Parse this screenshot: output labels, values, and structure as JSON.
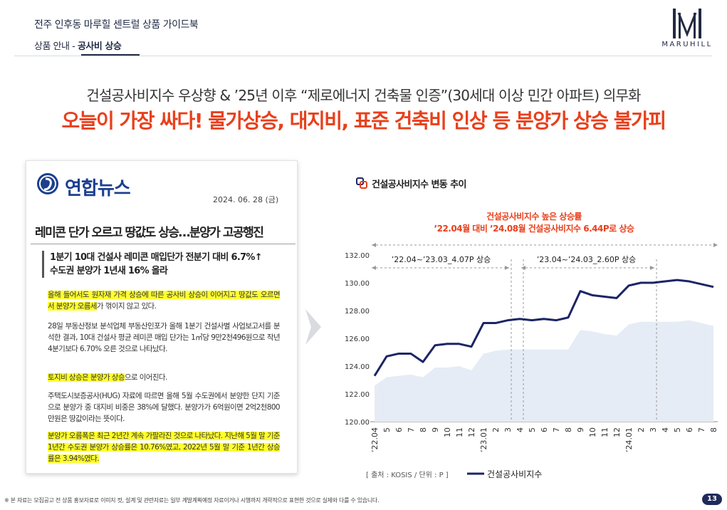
{
  "header": {
    "title": "전주 인후동 마루힐 센트럴 상품 가이드북",
    "section": "상품 안내",
    "separator": "-",
    "subsection": "공사비 상승",
    "logo_text": "MARUHILL"
  },
  "headline": {
    "line1": "건설공사비지수 우상향 & ’25년 이후 “제로에너지 건축물 인증”(30세대 이상 민간 아파트) 의무화",
    "line2": "오늘이 가장 싸다! 물가상승, 대지비, 표준 건축비 인상 등 분양가 상승 불가피"
  },
  "news": {
    "brand": "연합뉴스",
    "date": "2024. 06. 28 (금)",
    "title": "레미콘 단가 오르고 땅값도 상승…분양가 고공행진",
    "summary1": "1분기 10대 건설사 레미콘 매입단가 전분기 대비 6.7%↑",
    "summary2": "수도권 분양가 1년새 16% 올라",
    "p1_hl": "올해 들어서도 원자재 가격 상승에 따른 공사비 상승이 이어지고 땅값도 오르면서 분양가 오름세",
    "p1_rest": "가 꺾이지 않고 있다.",
    "p2": "28일 부동산정보 분석업체 부동산인포가 올해 1분기 건설사별 사업보고서를 분석한 결과, 10대 건설사 평균 레미콘 매입 단가는 1㎥당 9만2천496원으로 작년 4분기보다 6.70% 오른 것으로 나타났다.",
    "p3_hl": "토지비 상승은 분양가 상승",
    "p3_rest": "으로 이어진다.",
    "p4": "주택도시보증공사(HUG) 자료에 따르면 올해 5월 수도권에서 분양한 단지 기준으로 분양가 중 대지비 비중은 38%에 달했다. 분양가가 6억원이면 2억2천800만원은 땅값이라는 뜻이다.",
    "p5_hl": "분양가 오름폭은 최근 2년간 계속 가팔라진 것으로 나타났다. 지난해 5월 말 기준 1년간 수도권 분양가 상승률은 10.76%였고, 2022년 5월 말 기준 1년간 상승률은 3.94%였다."
  },
  "chart": {
    "title": "건설공사비지수 변동 추이",
    "annotation_line1": "건설공사비지수 높은 상승률",
    "annotation_line2": "’22.04월 대비 ’24.08월 건설공사비지수 6.44P로 상승",
    "period1": "’22.04~’23.03_4.07P 상승",
    "period2": "’23.04~’24.03_2.60P 상승",
    "source": "[ 출처 : KOSIS / 단위 : P ]",
    "legend": "건설공사비지수"
  },
  "chart_data": {
    "type": "line",
    "x": [
      "’22.04",
      "5",
      "6",
      "7",
      "8",
      "9",
      "10",
      "11",
      "12",
      "’23.01",
      "2",
      "3",
      "4",
      "5",
      "6",
      "7",
      "8",
      "9",
      "10",
      "11",
      "12",
      "’24.01",
      "2",
      "3",
      "4",
      "5",
      "6",
      "7",
      "8"
    ],
    "series": [
      {
        "name": "건설공사비지수",
        "values": [
          123.3,
          124.7,
          124.9,
          124.9,
          124.3,
          125.5,
          125.6,
          125.6,
          125.4,
          127.1,
          127.1,
          127.3,
          127.4,
          127.3,
          127.4,
          127.3,
          127.5,
          129.4,
          129.1,
          129.0,
          128.9,
          129.8,
          130.0,
          130.0,
          130.1,
          130.2,
          130.1,
          129.9,
          129.7
        ]
      },
      {
        "values": [
          122.6,
          123.2,
          123.3,
          123.4,
          123.2,
          123.9,
          123.9,
          124.0,
          123.7,
          124.9,
          125.1,
          125.2,
          125.2,
          125.2,
          125.2,
          125.2,
          125.2,
          126.6,
          126.5,
          126.3,
          126.2,
          127.0,
          127.2,
          127.2,
          127.2,
          127.2,
          127.3,
          127.1,
          126.9
        ]
      }
    ],
    "yticks": [
      "132.00",
      "130.00",
      "128.00",
      "126.00",
      "124.00",
      "122.00",
      "120.00"
    ],
    "ylim": [
      120,
      132
    ],
    "line_color": "#1c2566",
    "area_color": "#e6ecf5"
  },
  "footer": {
    "note": "※ 본 자료는 모집공고 전 상품 홍보자료로 이미지 컷, 설계 및 관련자료는 일부 계발계획예정 자료이거나 시행까지 개략적으로 표현한 것으로 실제와 다를 수 있습니다.",
    "page": "13"
  }
}
